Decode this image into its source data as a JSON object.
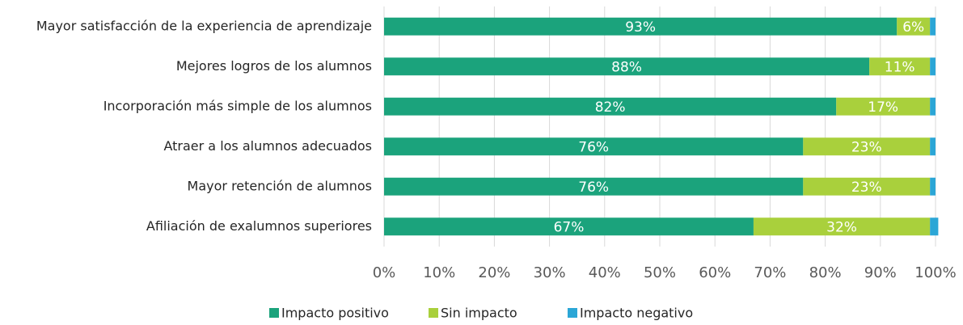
{
  "chart_data": {
    "type": "stacked-bar-horizontal",
    "categories": [
      "Mayor satisfacción de la experiencia de aprendizaje",
      "Mejores logros de los alumnos",
      "Incorporación más simple de los alumnos",
      "Atraer a los alumnos adecuados",
      "Mayor retención de alumnos",
      "Afiliación de exalumnos superiores"
    ],
    "series": [
      {
        "name": "Impacto positivo",
        "color": "#1ba37c",
        "values": [
          93,
          88,
          82,
          76,
          76,
          67
        ],
        "value_labels": [
          "93%",
          "88%",
          "82%",
          "76%",
          "76%",
          "67%"
        ]
      },
      {
        "name": "Sin impacto",
        "color": "#a9d03c",
        "values": [
          6,
          11,
          17,
          23,
          23,
          32
        ],
        "value_labels": [
          "6%",
          "11%",
          "17%",
          "23%",
          "23%",
          "32%"
        ]
      },
      {
        "name": "Impacto negativo",
        "color": "#2ba6d6",
        "values": [
          1,
          1,
          1,
          1,
          1,
          1.5
        ]
      }
    ],
    "xlim": [
      0,
      100
    ],
    "xticks": [
      {
        "value": 0,
        "label": "0%"
      },
      {
        "value": 10,
        "label": "10%"
      },
      {
        "value": 20,
        "label": "20%"
      },
      {
        "value": 30,
        "label": "30%"
      },
      {
        "value": 40,
        "label": "40%"
      },
      {
        "value": 50,
        "label": "50%"
      },
      {
        "value": 60,
        "label": "60%"
      },
      {
        "value": 70,
        "label": "70%"
      },
      {
        "value": 80,
        "label": "80%"
      },
      {
        "value": 90,
        "label": "90%"
      },
      {
        "value": 100,
        "label": "100%"
      }
    ],
    "grid": true
  }
}
